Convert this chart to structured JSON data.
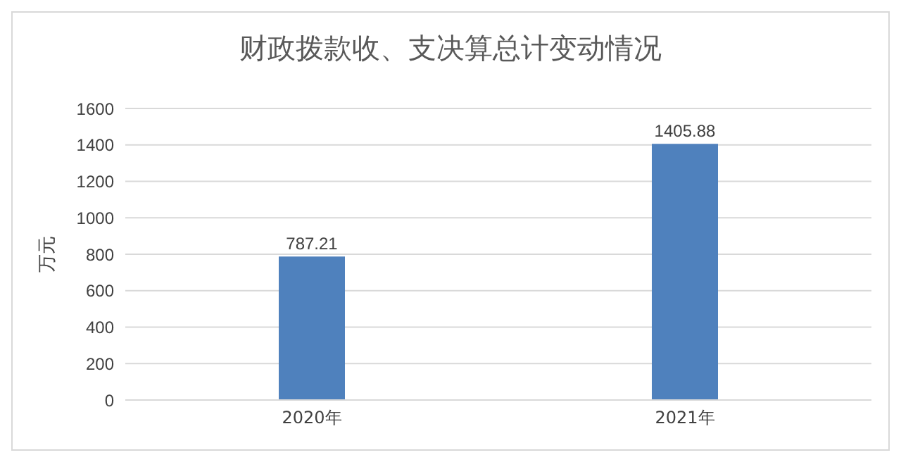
{
  "chart_data": {
    "type": "bar",
    "title": "财政拨款收、支决算总计变动情况",
    "ylabel": "万元",
    "categories": [
      "2020年",
      "2021年"
    ],
    "series": [
      {
        "color": "#4f81bd",
        "values": [
          787.21,
          1405.88
        ]
      }
    ],
    "ylim": [
      0,
      1600
    ],
    "yticks": [
      0,
      200,
      400,
      600,
      800,
      1000,
      1200,
      1400,
      1600
    ],
    "grid": "y",
    "data_labels": true,
    "legend": false
  }
}
